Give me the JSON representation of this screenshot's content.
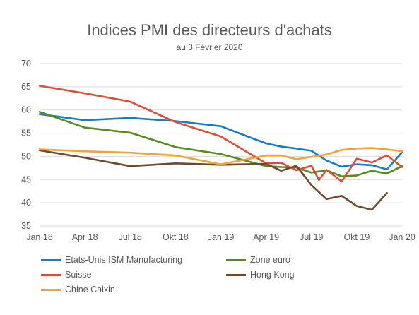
{
  "chart_data": {
    "type": "line",
    "title": "Indices PMI des directeurs d'achats",
    "subtitle": "au 3 Février 2020",
    "xlabel": "",
    "ylabel": "",
    "ylim": [
      35,
      70
    ],
    "yticks": [
      "70",
      "65",
      "60",
      "55",
      "50",
      "45",
      "40",
      "35"
    ],
    "xticks": [
      "Jan 18",
      "Apr 18",
      "Jul 18",
      "Okt 18",
      "Jan 19",
      "Apr 19",
      "Jul 19",
      "Okt 19",
      "Jan 20"
    ],
    "grid": true,
    "legend_position": "bottom",
    "series": [
      {
        "name": "Etats-Unis ISM Manufacturing",
        "color": "#1a7bbf",
        "points": [
          [
            0,
            59.1
          ],
          [
            3,
            57.8
          ],
          [
            6,
            58.3
          ],
          [
            9,
            57.6
          ],
          [
            12,
            56.5
          ],
          [
            14,
            54.0
          ],
          [
            15,
            52.8
          ],
          [
            16,
            52.1
          ],
          [
            17,
            51.7
          ],
          [
            18,
            51.2
          ],
          [
            19,
            49.1
          ],
          [
            20,
            47.8
          ],
          [
            21,
            48.3
          ],
          [
            22,
            48.1
          ],
          [
            23,
            47.2
          ],
          [
            24,
            50.9
          ]
        ]
      },
      {
        "name": "Zone euro",
        "color": "#5a8a1f",
        "points": [
          [
            0,
            59.6
          ],
          [
            3,
            56.2
          ],
          [
            6,
            55.1
          ],
          [
            9,
            52.0
          ],
          [
            12,
            50.5
          ],
          [
            15,
            47.9
          ],
          [
            16,
            47.7
          ],
          [
            17,
            47.6
          ],
          [
            18,
            46.5
          ],
          [
            19,
            47.0
          ],
          [
            20,
            45.7
          ],
          [
            21,
            45.9
          ],
          [
            22,
            46.9
          ],
          [
            23,
            46.3
          ],
          [
            24,
            47.9
          ]
        ]
      },
      {
        "name": "Suisse",
        "color": "#d9503a",
        "points": [
          [
            0,
            65.2
          ],
          [
            3,
            63.6
          ],
          [
            6,
            61.8
          ],
          [
            9,
            57.4
          ],
          [
            12,
            54.3
          ],
          [
            15,
            48.5
          ],
          [
            16,
            48.6
          ],
          [
            17,
            47.0
          ],
          [
            18,
            48.0
          ],
          [
            18.5,
            44.9
          ],
          [
            19,
            47.1
          ],
          [
            20,
            44.6
          ],
          [
            21,
            49.5
          ],
          [
            22,
            48.7
          ],
          [
            23,
            50.2
          ],
          [
            24,
            47.7
          ]
        ]
      },
      {
        "name": "Hong Kong",
        "color": "#6b4a2f",
        "points": [
          [
            0,
            51.3
          ],
          [
            3,
            49.7
          ],
          [
            6,
            47.9
          ],
          [
            9,
            48.5
          ],
          [
            12,
            48.2
          ],
          [
            15,
            48.4
          ],
          [
            16,
            46.9
          ],
          [
            17,
            48.0
          ],
          [
            18,
            43.8
          ],
          [
            19,
            40.8
          ],
          [
            20,
            41.5
          ],
          [
            21,
            39.3
          ],
          [
            22,
            38.5
          ],
          [
            23,
            42.1
          ]
        ]
      },
      {
        "name": "Chine Caixin",
        "color": "#f0a23b",
        "points": [
          [
            0,
            51.5
          ],
          [
            3,
            51.1
          ],
          [
            6,
            50.8
          ],
          [
            9,
            50.2
          ],
          [
            12,
            48.3
          ],
          [
            15,
            50.2
          ],
          [
            16,
            50.2
          ],
          [
            17,
            49.4
          ],
          [
            18,
            49.9
          ],
          [
            19,
            50.4
          ],
          [
            20,
            51.4
          ],
          [
            21,
            51.7
          ],
          [
            22,
            51.8
          ],
          [
            23,
            51.5
          ],
          [
            24,
            51.1
          ]
        ]
      }
    ]
  }
}
